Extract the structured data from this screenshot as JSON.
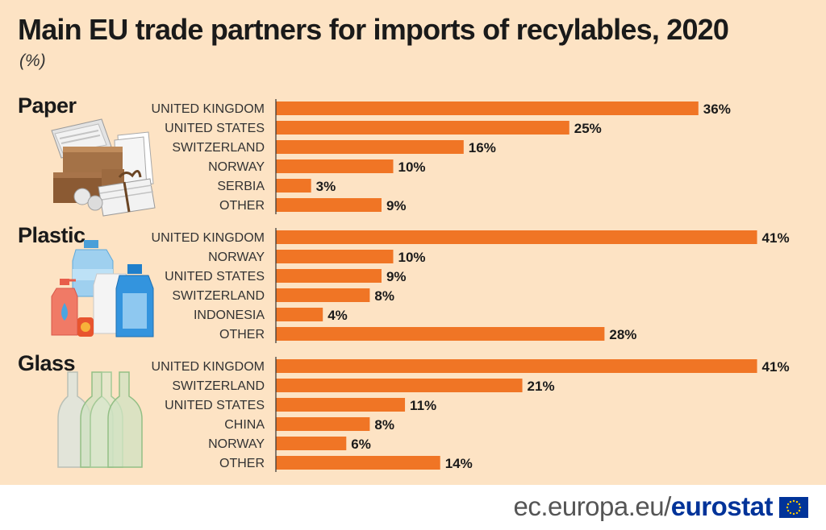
{
  "title": "Main EU trade partners for imports of recylables, 2020",
  "subtitle": "(%)",
  "source": {
    "prefix": "ec.europa.eu/",
    "brand": "eurostat"
  },
  "colors": {
    "bar": "#f07525",
    "background": "#fde3c4",
    "axis": "#333333",
    "brand": "#003399"
  },
  "icons": [
    "paper-boxes-illustration",
    "plastic-bottles-illustration",
    "glass-bottles-illustration",
    "eu-flag-icon"
  ],
  "chart_data": {
    "type": "bar",
    "orientation": "horizontal",
    "unit": "%",
    "value_suffix": "%",
    "groups": [
      {
        "name": "Paper",
        "categories": [
          "UNITED KINGDOM",
          "UNITED STATES",
          "SWITZERLAND",
          "NORWAY",
          "SERBIA",
          "OTHER"
        ],
        "values": [
          36,
          25,
          16,
          10,
          3,
          9
        ]
      },
      {
        "name": "Plastic",
        "categories": [
          "UNITED KINGDOM",
          "NORWAY",
          "UNITED STATES",
          "SWITZERLAND",
          "INDONESIA",
          "OTHER"
        ],
        "values": [
          41,
          10,
          9,
          8,
          4,
          28
        ]
      },
      {
        "name": "Glass",
        "categories": [
          "UNITED KINGDOM",
          "SWITZERLAND",
          "UNITED STATES",
          "CHINA",
          "NORWAY",
          "OTHER"
        ],
        "values": [
          41,
          21,
          11,
          8,
          6,
          14
        ]
      }
    ]
  }
}
